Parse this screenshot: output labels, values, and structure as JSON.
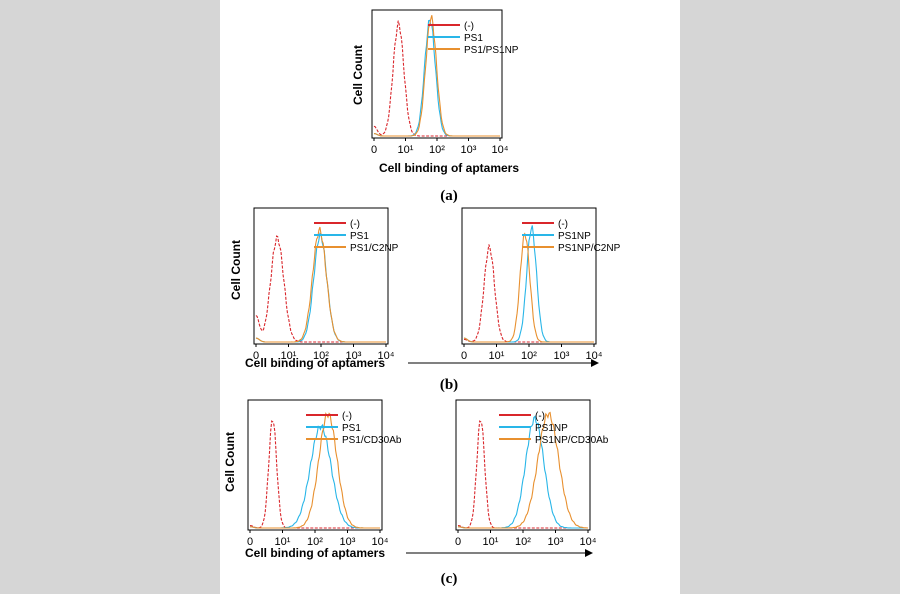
{
  "figure": {
    "background_color": "#ffffff",
    "margin_color": "#d6d6d6",
    "series_colors": {
      "neg": "#d9262b",
      "blue": "#29b6e8",
      "orange": "#e8902f"
    }
  },
  "chart_data": [
    {
      "type": "line",
      "panel_label": "(a)",
      "ylabel": "Cell Count",
      "xlabel": "Cell binding of aptamers",
      "xscale": "log",
      "xlim": [
        1,
        10000
      ],
      "x_ticks": [
        "0",
        "10¹",
        "10²",
        "10³",
        "10⁴"
      ],
      "legend": [
        "(-)",
        "PS1",
        "PS1/PS1NP"
      ],
      "series": [
        {
          "name": "(-)",
          "color": "#d9262b",
          "peak": 6,
          "width": 0.17,
          "height": 0.92,
          "tail": 0.08
        },
        {
          "name": "PS1",
          "color": "#29b6e8",
          "peak": 60,
          "width": 0.17,
          "height": 0.95,
          "tail": 0.02
        },
        {
          "name": "PS1/PS1NP",
          "color": "#e8902f",
          "peak": 65,
          "width": 0.17,
          "height": 0.97,
          "tail": 0.02
        }
      ]
    },
    {
      "type": "line",
      "panel_label": "(b)",
      "ylabel": "Cell Count",
      "xlabel": "Cell binding of aptamers",
      "xscale": "log",
      "xlim": [
        1,
        10000
      ],
      "x_ticks": [
        "0",
        "10¹",
        "10²",
        "10³",
        "10⁴"
      ],
      "legend": [
        "(-)",
        "PS1",
        "PS1/C2NP"
      ],
      "series": [
        {
          "name": "(-)",
          "color": "#d9262b",
          "peak": 4.5,
          "width": 0.2,
          "height": 0.8,
          "tail": 0.2
        },
        {
          "name": "PS1",
          "color": "#29b6e8",
          "peak": 95,
          "width": 0.2,
          "height": 0.82,
          "tail": 0.03
        },
        {
          "name": "PS1/C2NP",
          "color": "#e8902f",
          "peak": 90,
          "width": 0.21,
          "height": 0.86,
          "tail": 0.03
        }
      ]
    },
    {
      "type": "line",
      "ylabel": "",
      "xlabel": "",
      "xscale": "log",
      "xlim": [
        1,
        10000
      ],
      "x_ticks": [
        "0",
        "10¹",
        "10²",
        "10³",
        "10⁴"
      ],
      "legend": [
        "(-)",
        "PS1NP",
        "PS1NP/C2NP"
      ],
      "series": [
        {
          "name": "(-)",
          "color": "#d9262b",
          "peak": 6,
          "width": 0.16,
          "height": 0.73,
          "tail": 0.02
        },
        {
          "name": "PS1NP",
          "color": "#29b6e8",
          "peak": 120,
          "width": 0.15,
          "height": 0.88,
          "tail": 0.03
        },
        {
          "name": "PS1NP/C2NP",
          "color": "#e8902f",
          "peak": 75,
          "width": 0.15,
          "height": 0.83,
          "tail": 0.03
        }
      ]
    },
    {
      "type": "line",
      "panel_label": "(c)",
      "ylabel": "Cell Count",
      "xlabel": "Cell binding of aptamers",
      "xscale": "log",
      "xlim": [
        1,
        10000
      ],
      "x_ticks": [
        "0",
        "10¹",
        "10²",
        "10³",
        "10⁴"
      ],
      "legend": [
        "(-)",
        "PS1",
        "PS1/CD30Ab"
      ],
      "series": [
        {
          "name": "(-)",
          "color": "#d9262b",
          "peak": 5,
          "width": 0.12,
          "height": 0.88,
          "tail": 0.02
        },
        {
          "name": "PS1",
          "color": "#29b6e8",
          "peak": 150,
          "width": 0.32,
          "height": 0.82,
          "tail": 0.01
        },
        {
          "name": "PS1/CD30Ab",
          "color": "#e8902f",
          "peak": 250,
          "width": 0.28,
          "height": 0.92,
          "tail": 0.01
        }
      ]
    },
    {
      "type": "line",
      "ylabel": "",
      "xlabel": "",
      "xscale": "log",
      "xlim": [
        1,
        10000
      ],
      "x_ticks": [
        "0",
        "10¹",
        "10²",
        "10³",
        "10⁴"
      ],
      "legend": [
        "(-)",
        "PS1NP",
        "PS1NP/CD30Ab"
      ],
      "series": [
        {
          "name": "(-)",
          "color": "#d9262b",
          "peak": 5,
          "width": 0.12,
          "height": 0.88,
          "tail": 0.02
        },
        {
          "name": "PS1NP",
          "color": "#29b6e8",
          "peak": 230,
          "width": 0.28,
          "height": 0.88,
          "tail": 0.01
        },
        {
          "name": "PS1NP/CD30Ab",
          "color": "#e8902f",
          "peak": 600,
          "width": 0.32,
          "height": 0.92,
          "tail": 0.01
        }
      ]
    }
  ]
}
